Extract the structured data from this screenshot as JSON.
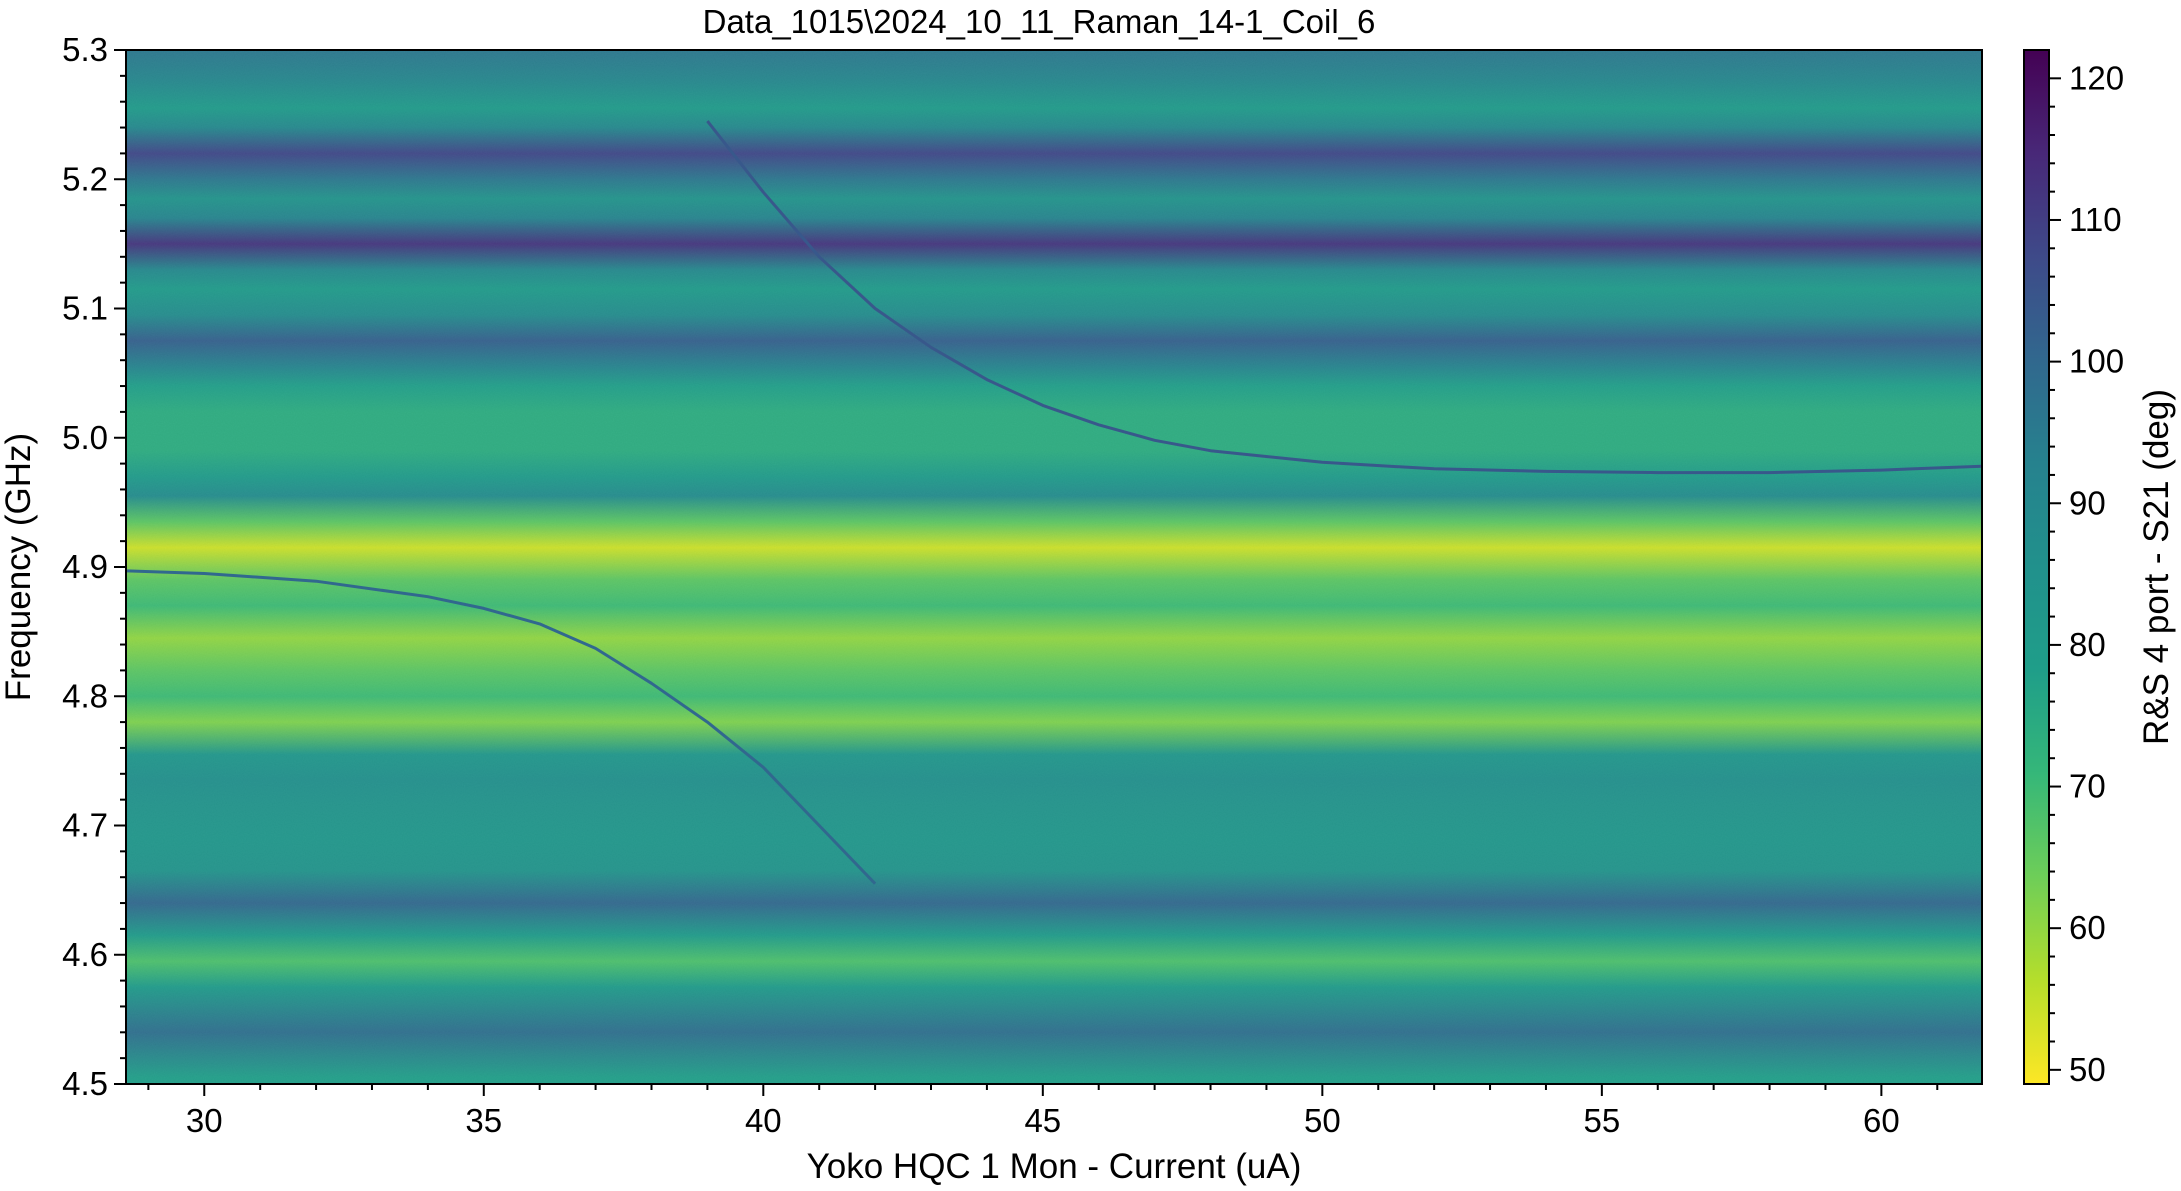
{
  "chart_data": {
    "type": "heatmap",
    "title": "Data_1015\\2024_10_11_Raman_14-1_Coil_6",
    "xlabel": "Yoko HQC 1 Mon - Current (uA)",
    "ylabel": "Frequency (GHz)",
    "xlim": [
      28.6,
      61.8
    ],
    "ylim": [
      4.5,
      5.3
    ],
    "x_ticks": [
      "30",
      "35",
      "40",
      "45",
      "50",
      "55",
      "60"
    ],
    "y_ticks": [
      "4.5",
      "4.6",
      "4.7",
      "4.8",
      "4.9",
      "5.0",
      "5.1",
      "5.2",
      "5.3"
    ],
    "colorbar": {
      "label": "R&S 4 port - S21 (deg)",
      "range": [
        49,
        122
      ],
      "ticks": [
        "50",
        "60",
        "70",
        "80",
        "90",
        "100",
        "110",
        "120"
      ],
      "colormap": "viridis_r"
    },
    "bands": [
      {
        "freq": 4.505,
        "value": 78
      },
      {
        "freq": 4.54,
        "value": 98
      },
      {
        "freq": 4.575,
        "value": 80
      },
      {
        "freq": 4.595,
        "value": 68
      },
      {
        "freq": 4.615,
        "value": 80
      },
      {
        "freq": 4.64,
        "value": 100
      },
      {
        "freq": 4.665,
        "value": 84
      },
      {
        "freq": 4.69,
        "value": 82
      },
      {
        "freq": 4.715,
        "value": 84
      },
      {
        "freq": 4.735,
        "value": 86
      },
      {
        "freq": 4.755,
        "value": 82
      },
      {
        "freq": 4.78,
        "value": 62
      },
      {
        "freq": 4.8,
        "value": 70
      },
      {
        "freq": 4.82,
        "value": 66
      },
      {
        "freq": 4.845,
        "value": 60
      },
      {
        "freq": 4.87,
        "value": 70
      },
      {
        "freq": 4.89,
        "value": 66
      },
      {
        "freq": 4.915,
        "value": 54
      },
      {
        "freq": 4.935,
        "value": 66
      },
      {
        "freq": 4.955,
        "value": 88
      },
      {
        "freq": 4.97,
        "value": 80
      },
      {
        "freq": 4.99,
        "value": 74
      },
      {
        "freq": 5.02,
        "value": 74
      },
      {
        "freq": 5.04,
        "value": 78
      },
      {
        "freq": 5.055,
        "value": 92
      },
      {
        "freq": 5.075,
        "value": 102
      },
      {
        "freq": 5.095,
        "value": 88
      },
      {
        "freq": 5.115,
        "value": 80
      },
      {
        "freq": 5.13,
        "value": 90
      },
      {
        "freq": 5.15,
        "value": 112
      },
      {
        "freq": 5.17,
        "value": 92
      },
      {
        "freq": 5.185,
        "value": 84
      },
      {
        "freq": 5.2,
        "value": 96
      },
      {
        "freq": 5.22,
        "value": 108
      },
      {
        "freq": 5.24,
        "value": 90
      },
      {
        "freq": 5.255,
        "value": 80
      },
      {
        "freq": 5.275,
        "value": 90
      },
      {
        "freq": 5.3,
        "value": 96
      }
    ],
    "series": [
      {
        "x": [
          28.6,
          30,
          32,
          34,
          35,
          36,
          37,
          38,
          39,
          40,
          41,
          42
        ],
        "y": [
          4.897,
          4.895,
          4.889,
          4.877,
          4.868,
          4.856,
          4.837,
          4.81,
          4.78,
          4.745,
          4.7,
          4.655
        ],
        "value": 100
      },
      {
        "x": [
          39,
          40,
          41,
          42,
          43,
          44,
          45,
          46,
          47,
          48,
          50,
          52,
          54,
          56,
          58,
          60,
          61.8
        ],
        "y": [
          5.245,
          5.19,
          5.14,
          5.1,
          5.07,
          5.045,
          5.025,
          5.01,
          4.998,
          4.99,
          4.981,
          4.976,
          4.974,
          4.973,
          4.973,
          4.975,
          4.978
        ],
        "value": 104
      }
    ]
  }
}
